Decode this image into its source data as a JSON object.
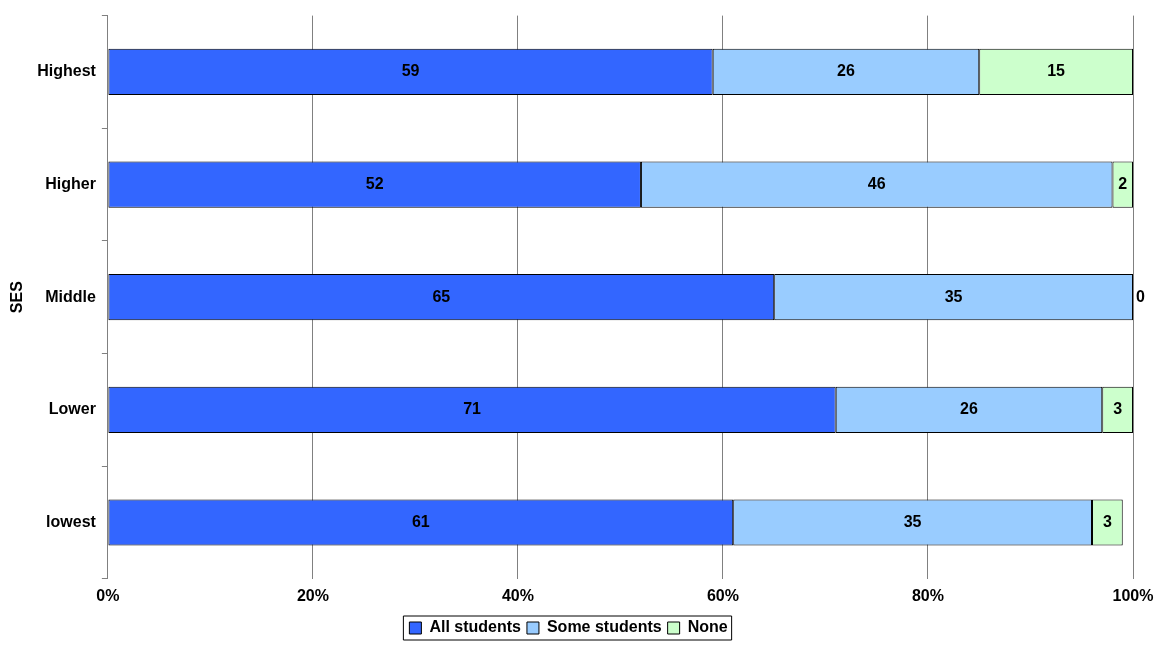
{
  "chart_data": {
    "type": "bar",
    "orientation": "horizontal",
    "stacked": true,
    "ylabel": "SES",
    "categories": [
      "Highest",
      "Higher",
      "Middle",
      "Lower",
      "lowest"
    ],
    "series": [
      {
        "name": "All students",
        "color": "#3366ff",
        "values": [
          59,
          52,
          65,
          71,
          61
        ]
      },
      {
        "name": "Some students",
        "color": "#99ccff",
        "values": [
          26,
          46,
          35,
          26,
          35
        ]
      },
      {
        "name": "None",
        "color": "#ccffcc",
        "values": [
          15,
          2,
          0,
          3,
          3
        ]
      }
    ],
    "xlim": [
      0,
      100
    ],
    "xticks": [
      {
        "value": 0,
        "label": "0%"
      },
      {
        "value": 20,
        "label": "20%"
      },
      {
        "value": 40,
        "label": "40%"
      },
      {
        "value": 60,
        "label": "60%"
      },
      {
        "value": 80,
        "label": "80%"
      },
      {
        "value": 100,
        "label": "100%"
      }
    ],
    "grid": "x",
    "legend": "bottom",
    "data_labels": true
  }
}
